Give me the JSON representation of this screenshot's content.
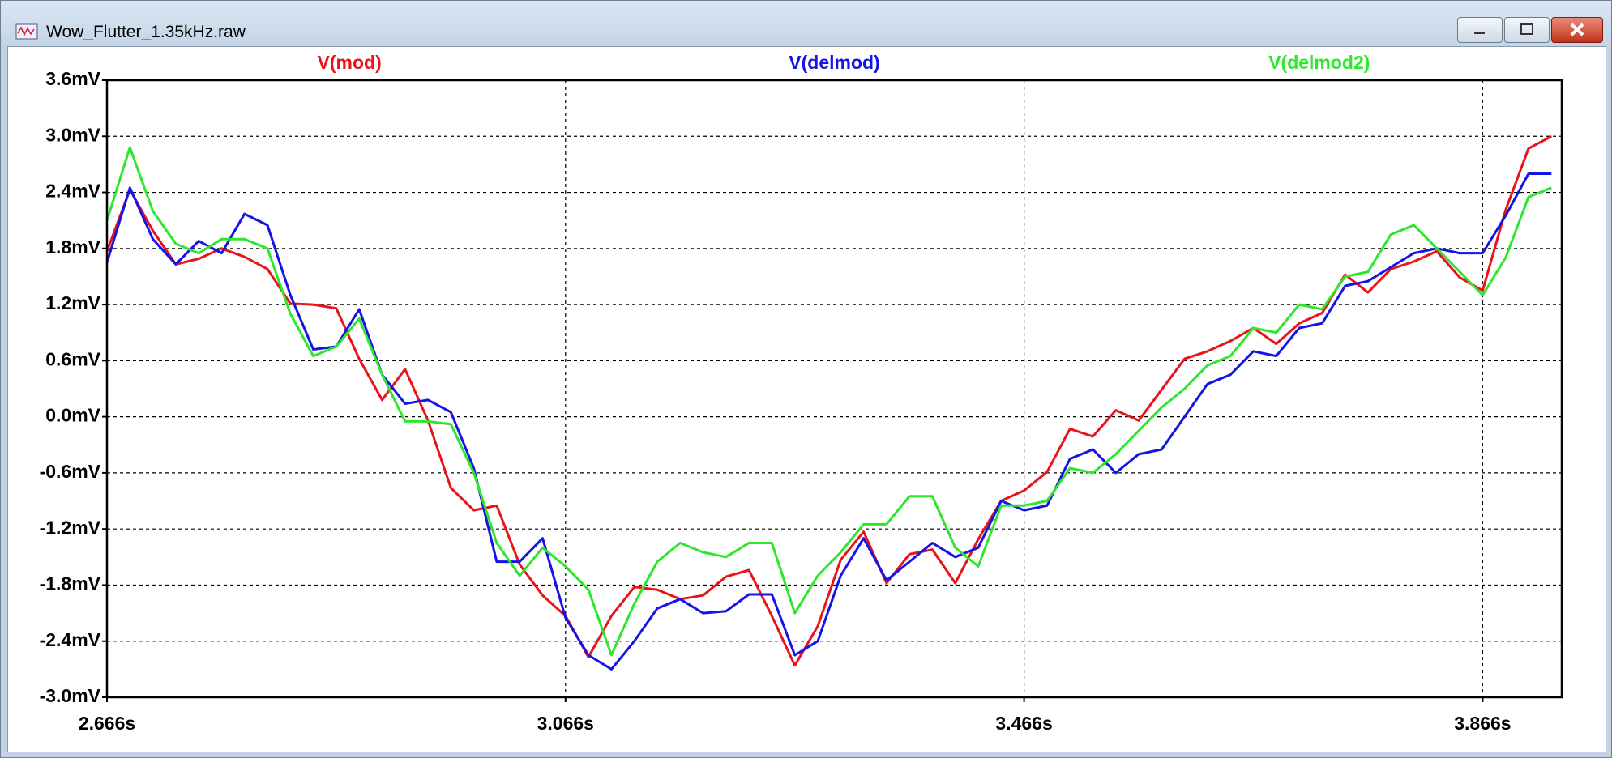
{
  "window": {
    "title": "Wow_Flutter_1.35kHz.raw"
  },
  "chart_data": {
    "type": "line",
    "x": [
      2.666,
      2.686,
      2.706,
      2.726,
      2.746,
      2.766,
      2.786,
      2.806,
      2.826,
      2.846,
      2.866,
      2.886,
      2.906,
      2.926,
      2.946,
      2.966,
      2.986,
      3.006,
      3.026,
      3.046,
      3.066,
      3.086,
      3.106,
      3.126,
      3.146,
      3.166,
      3.186,
      3.206,
      3.226,
      3.246,
      3.266,
      3.286,
      3.306,
      3.326,
      3.346,
      3.366,
      3.386,
      3.406,
      3.426,
      3.446,
      3.466,
      3.486,
      3.506,
      3.526,
      3.546,
      3.566,
      3.586,
      3.606,
      3.626,
      3.646,
      3.666,
      3.686,
      3.706,
      3.726,
      3.746,
      3.766,
      3.786,
      3.806,
      3.826,
      3.846,
      3.866,
      3.886,
      3.906,
      3.926
    ],
    "series": [
      {
        "name": "V(mod)",
        "color": "#e8141a",
        "values": [
          1.77,
          2.43,
          1.99,
          1.63,
          1.69,
          1.8,
          1.71,
          1.58,
          1.21,
          1.2,
          1.16,
          0.62,
          0.18,
          0.51,
          -0.04,
          -0.76,
          -1.0,
          -0.95,
          -1.58,
          -1.91,
          -2.13,
          -2.57,
          -2.13,
          -1.82,
          -1.85,
          -1.95,
          -1.91,
          -1.71,
          -1.64,
          -2.13,
          -2.66,
          -2.24,
          -1.53,
          -1.23,
          -1.78,
          -1.47,
          -1.42,
          -1.78,
          -1.31,
          -0.9,
          -0.79,
          -0.59,
          -0.13,
          -0.21,
          0.07,
          -0.04,
          0.29,
          0.62,
          0.7,
          0.81,
          0.95,
          0.78,
          1.0,
          1.11,
          1.52,
          1.33,
          1.58,
          1.66,
          1.77,
          1.49,
          1.35,
          2.21,
          2.87,
          3.0
        ]
      },
      {
        "name": "V(delmod)",
        "color": "#1414e6",
        "values": [
          1.65,
          2.45,
          1.9,
          1.63,
          1.88,
          1.75,
          2.17,
          2.05,
          1.3,
          0.72,
          0.75,
          1.15,
          0.45,
          0.14,
          0.18,
          0.05,
          -0.55,
          -1.55,
          -1.55,
          -1.3,
          -2.15,
          -2.55,
          -2.7,
          -2.4,
          -2.05,
          -1.95,
          -2.1,
          -2.08,
          -1.9,
          -1.9,
          -2.55,
          -2.4,
          -1.7,
          -1.3,
          -1.75,
          -1.55,
          -1.35,
          -1.5,
          -1.4,
          -0.9,
          -1.0,
          -0.95,
          -0.45,
          -0.35,
          -0.6,
          -0.4,
          -0.35,
          0.0,
          0.35,
          0.45,
          0.7,
          0.65,
          0.95,
          1.0,
          1.4,
          1.45,
          1.6,
          1.75,
          1.8,
          1.75,
          1.75,
          2.15,
          2.6,
          2.6
        ]
      },
      {
        "name": "V(delmod2)",
        "color": "#2ee62e",
        "values": [
          2.1,
          2.88,
          2.2,
          1.85,
          1.75,
          1.9,
          1.9,
          1.8,
          1.1,
          0.65,
          0.75,
          1.05,
          0.45,
          -0.05,
          -0.05,
          -0.08,
          -0.6,
          -1.35,
          -1.7,
          -1.4,
          -1.6,
          -1.85,
          -2.55,
          -2.0,
          -1.55,
          -1.35,
          -1.45,
          -1.5,
          -1.35,
          -1.35,
          -2.1,
          -1.7,
          -1.45,
          -1.15,
          -1.15,
          -0.85,
          -0.85,
          -1.4,
          -1.6,
          -0.95,
          -0.95,
          -0.9,
          -0.55,
          -0.6,
          -0.4,
          -0.15,
          0.1,
          0.3,
          0.55,
          0.65,
          0.95,
          0.9,
          1.2,
          1.15,
          1.5,
          1.55,
          1.95,
          2.05,
          1.8,
          1.55,
          1.3,
          1.7,
          2.35,
          2.45
        ]
      }
    ],
    "xlim": [
      2.666,
      3.935
    ],
    "xticks": [
      {
        "value": 2.666,
        "label": "2.666s"
      },
      {
        "value": 3.066,
        "label": "3.066s"
      },
      {
        "value": 3.466,
        "label": "3.466s"
      },
      {
        "value": 3.866,
        "label": "3.866s"
      }
    ],
    "ylim": [
      -3.0,
      3.6
    ],
    "yticks": [
      {
        "value": -3.0,
        "label": "-3.0mV"
      },
      {
        "value": -2.4,
        "label": "-2.4mV"
      },
      {
        "value": -1.8,
        "label": "-1.8mV"
      },
      {
        "value": -1.2,
        "label": "-1.2mV"
      },
      {
        "value": -0.6,
        "label": "-0.6mV"
      },
      {
        "value": 0.0,
        "label": "0.0mV"
      },
      {
        "value": 0.6,
        "label": "0.6mV"
      },
      {
        "value": 1.2,
        "label": "1.2mV"
      },
      {
        "value": 1.8,
        "label": "1.8mV"
      },
      {
        "value": 2.4,
        "label": "2.4mV"
      },
      {
        "value": 3.0,
        "label": "3.0mV"
      },
      {
        "value": 3.6,
        "label": "3.6mV"
      }
    ],
    "grid": true
  }
}
